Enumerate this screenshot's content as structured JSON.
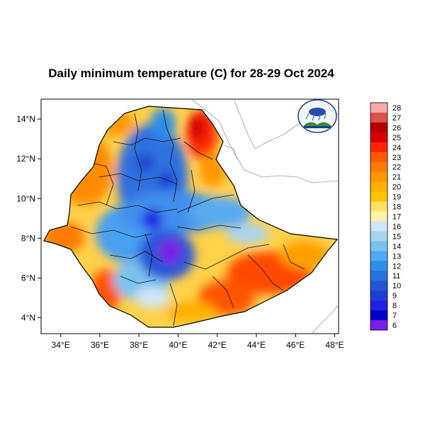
{
  "title": "Daily minimum temperature (C) for 28-29 Oct 2024",
  "map": {
    "lon_range": [
      33,
      48.2
    ],
    "lat_range": [
      3.2,
      15
    ],
    "x_ticks": [
      "34°E",
      "36°E",
      "38°E",
      "40°E",
      "42°E",
      "44°E",
      "46°E",
      "48°E"
    ],
    "y_ticks": [
      "4°N",
      "6°N",
      "8°N",
      "10°N",
      "12°N",
      "14°N"
    ],
    "x_tick_values": [
      34,
      36,
      38,
      40,
      42,
      44,
      46,
      48
    ],
    "y_tick_values": [
      4,
      6,
      8,
      10,
      12,
      14
    ],
    "region": "Ethiopia",
    "logo": "ethiopian-meteorology-institute-logo"
  },
  "colorbar": {
    "labels": [
      "28",
      "27",
      "26",
      "25",
      "24",
      "23",
      "22",
      "21",
      "20",
      "19",
      "18",
      "17",
      "16",
      "15",
      "14",
      "13",
      "12",
      "11",
      "10",
      "9",
      "8",
      "7",
      "6"
    ],
    "colors": [
      "#f7a8a8",
      "#d9534f",
      "#b30000",
      "#d60000",
      "#ff2200",
      "#ff5a00",
      "#ff7a00",
      "#ff9600",
      "#ffb000",
      "#ffc400",
      "#ffe066",
      "#fff2a8",
      "#cfe6f7",
      "#a8d4f2",
      "#7cc2f0",
      "#4fa9ef",
      "#2f8ee8",
      "#2672e0",
      "#2555d8",
      "#1f3fd0",
      "#2020e8",
      "#0000c8",
      "#7a1fe8"
    ]
  }
}
